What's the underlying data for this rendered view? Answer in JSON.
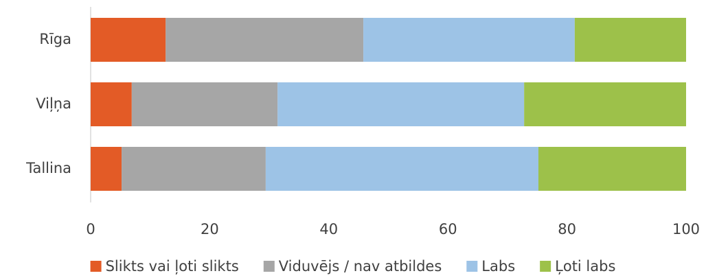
{
  "chart_data": {
    "type": "stacked_barh",
    "categories": [
      "Rīga",
      "Viļņa",
      "Tallina"
    ],
    "series": [
      {
        "name": "Slikts vai ļoti slikts",
        "color": "#e35b26",
        "values": [
          12.6,
          6.9,
          5.2
        ]
      },
      {
        "name": "Viduvējs / nav atbildes",
        "color": "#a6a6a6",
        "values": [
          33.2,
          24.5,
          24.2
        ]
      },
      {
        "name": "Labs",
        "color": "#9dc3e6",
        "values": [
          35.5,
          41.4,
          45.8
        ]
      },
      {
        "name": "Ļoti labs",
        "color": "#9dc14a",
        "values": [
          18.7,
          27.2,
          24.8
        ]
      }
    ],
    "xlim": [
      0,
      100
    ],
    "xticks": [
      0,
      20,
      40,
      60,
      80,
      100
    ],
    "grid": false,
    "legend": "bottom"
  }
}
